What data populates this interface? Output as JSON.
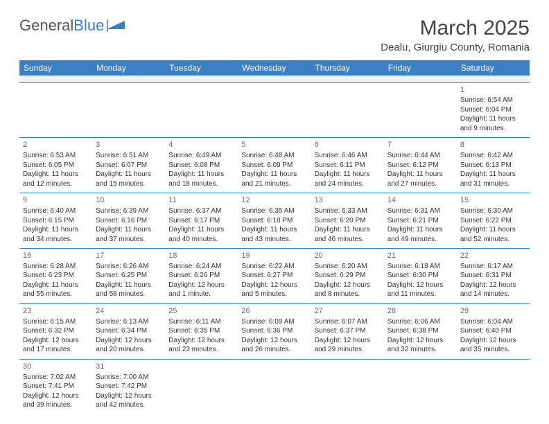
{
  "logo": {
    "text1": "General",
    "text2": "Blue"
  },
  "title": "March 2025",
  "location": "Dealu, Giurgiu County, Romania",
  "colors": {
    "header_bg": "#3b7fc4",
    "header_text": "#ffffff",
    "border": "#3b7fc4",
    "blank_bg": "#f2f2f2",
    "text": "#333333"
  },
  "weekdays": [
    "Sunday",
    "Monday",
    "Tuesday",
    "Wednesday",
    "Thursday",
    "Friday",
    "Saturday"
  ],
  "weeks": [
    [
      null,
      null,
      null,
      null,
      null,
      null,
      {
        "n": "1",
        "sr": "Sunrise: 6:54 AM",
        "ss": "Sunset: 6:04 PM",
        "dl": "Daylight: 11 hours and 9 minutes."
      }
    ],
    [
      {
        "n": "2",
        "sr": "Sunrise: 6:53 AM",
        "ss": "Sunset: 6:05 PM",
        "dl": "Daylight: 11 hours and 12 minutes."
      },
      {
        "n": "3",
        "sr": "Sunrise: 6:51 AM",
        "ss": "Sunset: 6:07 PM",
        "dl": "Daylight: 11 hours and 15 minutes."
      },
      {
        "n": "4",
        "sr": "Sunrise: 6:49 AM",
        "ss": "Sunset: 6:08 PM",
        "dl": "Daylight: 11 hours and 18 minutes."
      },
      {
        "n": "5",
        "sr": "Sunrise: 6:48 AM",
        "ss": "Sunset: 6:09 PM",
        "dl": "Daylight: 11 hours and 21 minutes."
      },
      {
        "n": "6",
        "sr": "Sunrise: 6:46 AM",
        "ss": "Sunset: 6:11 PM",
        "dl": "Daylight: 11 hours and 24 minutes."
      },
      {
        "n": "7",
        "sr": "Sunrise: 6:44 AM",
        "ss": "Sunset: 6:12 PM",
        "dl": "Daylight: 11 hours and 27 minutes."
      },
      {
        "n": "8",
        "sr": "Sunrise: 6:42 AM",
        "ss": "Sunset: 6:13 PM",
        "dl": "Daylight: 11 hours and 31 minutes."
      }
    ],
    [
      {
        "n": "9",
        "sr": "Sunrise: 6:40 AM",
        "ss": "Sunset: 6:15 PM",
        "dl": "Daylight: 11 hours and 34 minutes."
      },
      {
        "n": "10",
        "sr": "Sunrise: 6:39 AM",
        "ss": "Sunset: 6:16 PM",
        "dl": "Daylight: 11 hours and 37 minutes."
      },
      {
        "n": "11",
        "sr": "Sunrise: 6:37 AM",
        "ss": "Sunset: 6:17 PM",
        "dl": "Daylight: 11 hours and 40 minutes."
      },
      {
        "n": "12",
        "sr": "Sunrise: 6:35 AM",
        "ss": "Sunset: 6:18 PM",
        "dl": "Daylight: 11 hours and 43 minutes."
      },
      {
        "n": "13",
        "sr": "Sunrise: 6:33 AM",
        "ss": "Sunset: 6:20 PM",
        "dl": "Daylight: 11 hours and 46 minutes."
      },
      {
        "n": "14",
        "sr": "Sunrise: 6:31 AM",
        "ss": "Sunset: 6:21 PM",
        "dl": "Daylight: 11 hours and 49 minutes."
      },
      {
        "n": "15",
        "sr": "Sunrise: 6:30 AM",
        "ss": "Sunset: 6:22 PM",
        "dl": "Daylight: 11 hours and 52 minutes."
      }
    ],
    [
      {
        "n": "16",
        "sr": "Sunrise: 6:28 AM",
        "ss": "Sunset: 6:23 PM",
        "dl": "Daylight: 11 hours and 55 minutes."
      },
      {
        "n": "17",
        "sr": "Sunrise: 6:26 AM",
        "ss": "Sunset: 6:25 PM",
        "dl": "Daylight: 11 hours and 58 minutes."
      },
      {
        "n": "18",
        "sr": "Sunrise: 6:24 AM",
        "ss": "Sunset: 6:26 PM",
        "dl": "Daylight: 12 hours and 1 minute."
      },
      {
        "n": "19",
        "sr": "Sunrise: 6:22 AM",
        "ss": "Sunset: 6:27 PM",
        "dl": "Daylight: 12 hours and 5 minutes."
      },
      {
        "n": "20",
        "sr": "Sunrise: 6:20 AM",
        "ss": "Sunset: 6:29 PM",
        "dl": "Daylight: 12 hours and 8 minutes."
      },
      {
        "n": "21",
        "sr": "Sunrise: 6:18 AM",
        "ss": "Sunset: 6:30 PM",
        "dl": "Daylight: 12 hours and 11 minutes."
      },
      {
        "n": "22",
        "sr": "Sunrise: 6:17 AM",
        "ss": "Sunset: 6:31 PM",
        "dl": "Daylight: 12 hours and 14 minutes."
      }
    ],
    [
      {
        "n": "23",
        "sr": "Sunrise: 6:15 AM",
        "ss": "Sunset: 6:32 PM",
        "dl": "Daylight: 12 hours and 17 minutes."
      },
      {
        "n": "24",
        "sr": "Sunrise: 6:13 AM",
        "ss": "Sunset: 6:34 PM",
        "dl": "Daylight: 12 hours and 20 minutes."
      },
      {
        "n": "25",
        "sr": "Sunrise: 6:11 AM",
        "ss": "Sunset: 6:35 PM",
        "dl": "Daylight: 12 hours and 23 minutes."
      },
      {
        "n": "26",
        "sr": "Sunrise: 6:09 AM",
        "ss": "Sunset: 6:36 PM",
        "dl": "Daylight: 12 hours and 26 minutes."
      },
      {
        "n": "27",
        "sr": "Sunrise: 6:07 AM",
        "ss": "Sunset: 6:37 PM",
        "dl": "Daylight: 12 hours and 29 minutes."
      },
      {
        "n": "28",
        "sr": "Sunrise: 6:06 AM",
        "ss": "Sunset: 6:38 PM",
        "dl": "Daylight: 12 hours and 32 minutes."
      },
      {
        "n": "29",
        "sr": "Sunrise: 6:04 AM",
        "ss": "Sunset: 6:40 PM",
        "dl": "Daylight: 12 hours and 35 minutes."
      }
    ],
    [
      {
        "n": "30",
        "sr": "Sunrise: 7:02 AM",
        "ss": "Sunset: 7:41 PM",
        "dl": "Daylight: 12 hours and 39 minutes."
      },
      {
        "n": "31",
        "sr": "Sunrise: 7:00 AM",
        "ss": "Sunset: 7:42 PM",
        "dl": "Daylight: 12 hours and 42 minutes."
      },
      null,
      null,
      null,
      null,
      null
    ]
  ]
}
